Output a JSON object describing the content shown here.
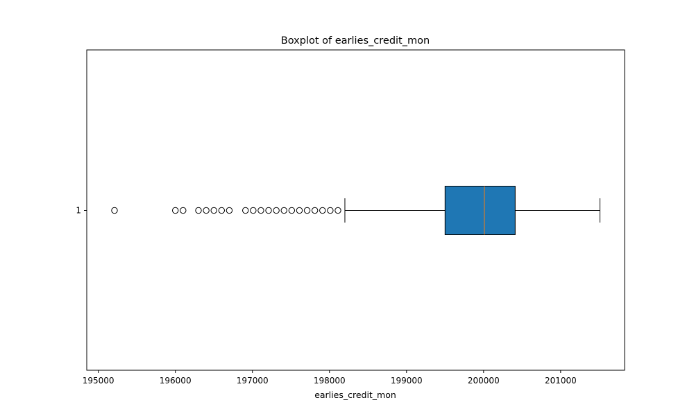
{
  "chart_data": {
    "type": "boxplot",
    "orientation": "horizontal",
    "title": "Boxplot of earlies_credit_mon",
    "xlabel": "earlies_credit_mon",
    "ylabel": "",
    "xlim": [
      194850,
      201830
    ],
    "xticks": [
      195000,
      196000,
      197000,
      198000,
      199000,
      200000,
      201000
    ],
    "xtick_labels": [
      "195000",
      "196000",
      "197000",
      "198000",
      "199000",
      "200000",
      "201000"
    ],
    "yticks": [
      "1"
    ],
    "grid": false,
    "box": {
      "category": "1",
      "whisker_low": 198200,
      "q1": 199500,
      "median": 200010,
      "q3": 200410,
      "whisker_high": 201510
    },
    "outliers": [
      195210,
      196000,
      196100,
      196300,
      196400,
      196500,
      196600,
      196700,
      196910,
      197010,
      197110,
      197210,
      197310,
      197410,
      197510,
      197610,
      197710,
      197810,
      197910,
      198010,
      198110
    ],
    "colors": {
      "box_fill": "#1f77b4",
      "median_line": "#ff7f0e",
      "edge": "#000000"
    }
  }
}
